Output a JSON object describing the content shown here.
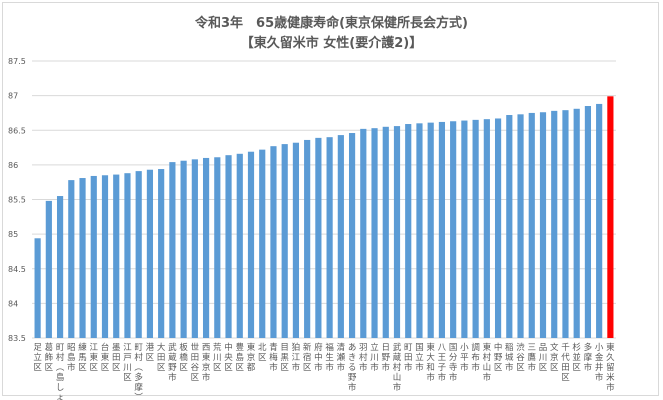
{
  "chart_data": {
    "type": "bar",
    "title": "令和3年　65歳健康寿命(東京保健所長会方式)",
    "subtitle": "【東久留米市 女性(要介護2)】",
    "xlabel": "",
    "ylabel": "",
    "ylim": [
      83.5,
      87.5
    ],
    "yticks": [
      83.5,
      84,
      84.5,
      85,
      85.5,
      86,
      86.5,
      87,
      87.5
    ],
    "grid": true,
    "colors": {
      "default": "#5b9bd5",
      "highlight": "#ff0000",
      "grid": "#d9d9d9"
    },
    "highlight": "東久留米市",
    "categories": [
      "足立区",
      "葛飾区",
      "町村(島しょ)",
      "昭島市",
      "練馬区",
      "江東区",
      "台東区",
      "墨田区",
      "江戸川区",
      "町村(多摩)",
      "港区",
      "大田区",
      "武蔵野市",
      "板橋区",
      "世田谷区",
      "西東京市",
      "荒川区",
      "中央区",
      "豊島区",
      "東京都",
      "北区",
      "青梅市",
      "目黒区",
      "狛江市",
      "新宿区",
      "府中市",
      "福生市",
      "清瀬市",
      "あきる野市",
      "羽村市",
      "立川市",
      "日野市",
      "武蔵村山市",
      "町田市",
      "国立市",
      "東大和市",
      "八王子市",
      "国分寺市",
      "小平市",
      "調布市",
      "東村山市",
      "中野区",
      "稲城市",
      "渋谷区",
      "三鷹市",
      "品川区",
      "文京区",
      "千代田区",
      "杉並区",
      "多摩市",
      "小金井市",
      "東久留米市"
    ],
    "values": [
      84.94,
      85.48,
      85.55,
      85.78,
      85.81,
      85.84,
      85.85,
      85.86,
      85.88,
      85.91,
      85.93,
      85.94,
      86.04,
      86.06,
      86.08,
      86.1,
      86.11,
      86.14,
      86.16,
      86.19,
      86.22,
      86.27,
      86.3,
      86.32,
      86.36,
      86.39,
      86.4,
      86.43,
      86.46,
      86.52,
      86.53,
      86.55,
      86.56,
      86.59,
      86.6,
      86.61,
      86.62,
      86.63,
      86.64,
      86.65,
      86.66,
      86.67,
      86.72,
      86.73,
      86.75,
      86.76,
      86.78,
      86.79,
      86.81,
      86.85,
      86.88,
      86.99
    ]
  }
}
